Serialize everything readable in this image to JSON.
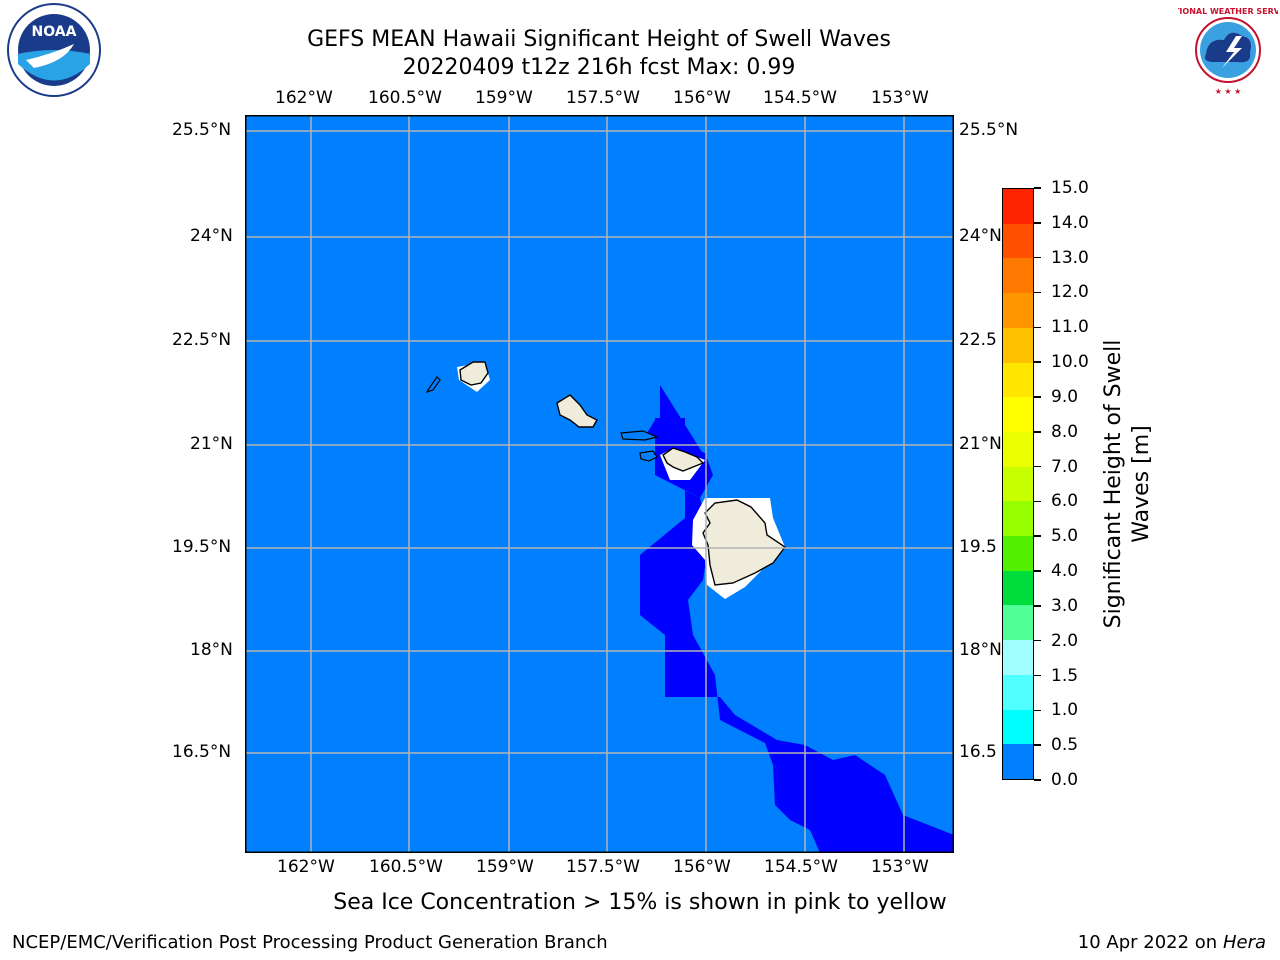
{
  "header": {
    "title_line1": "GEFS MEAN Hawaii Significant Height of Swell Waves",
    "title_line2": "20220409 t12z 216h fcst   Max: 0.99"
  },
  "logos": {
    "left_text": "NOAA",
    "right_text": "NATIONAL WEATHER SERVICE"
  },
  "map": {
    "lon_labels": [
      "162°W",
      "160.5°W",
      "159°W",
      "157.5°W",
      "156°W",
      "154.5°W",
      "153°W"
    ],
    "lat_labels": [
      "25.5°N",
      "24°N",
      "22.5°N",
      "21°N",
      "19.5°N",
      "18°N",
      "16.5°N"
    ],
    "lat_labels_right": [
      "25.5°N",
      "24°N",
      "22.5",
      "21°N",
      "19.5",
      "18°N",
      "16.5"
    ],
    "colors": {
      "ocean_0_5_1_0": "#0080ff",
      "ocean_0_0_5": "#0000ff",
      "land": "#f0ecdc",
      "grid": "#b4b4b4"
    }
  },
  "colorbar": {
    "label": "Significant Height of Swell Waves [m]",
    "label_line1": "Significant Height of Swell",
    "label_line2": "Waves [m]",
    "ticks": [
      "15.0",
      "14.0",
      "13.0",
      "12.0",
      "11.0",
      "10.0",
      "9.0",
      "8.0",
      "7.0",
      "6.0",
      "5.0",
      "4.0",
      "3.0",
      "2.0",
      "1.5",
      "1.0",
      "0.5",
      "0.0"
    ],
    "colors": [
      "#ff0000",
      "#ff2400",
      "#ff5000",
      "#ff7800",
      "#ff9600",
      "#ffc000",
      "#ffe600",
      "#ffff00",
      "#eaff00",
      "#c8ff00",
      "#96ff00",
      "#50f000",
      "#00dc3c",
      "#50ff96",
      "#a0ffff",
      "#50ffff",
      "#00ffff",
      "#0080ff",
      "#0000ff"
    ]
  },
  "footer": {
    "note": "Sea Ice Concentration > 15% is shown in pink to yellow",
    "left": "NCEP/EMC/Verification Post Processing Product Generation Branch",
    "right_prefix": "10 Apr 2022 on ",
    "right_host": "Hera"
  }
}
